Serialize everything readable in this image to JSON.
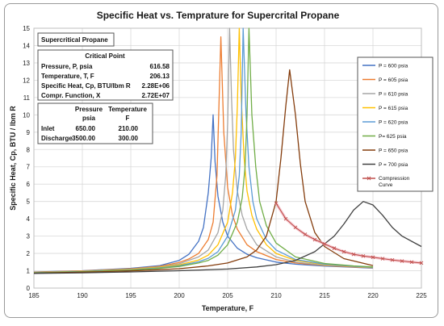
{
  "chart_data": {
    "type": "line",
    "title": "Specific Heat vs. Temprature for Supercrital Propane",
    "xlabel": "Temperature, F",
    "ylabel": "Specific Heat, Cp, BTU / lbm R",
    "xlim": [
      185,
      225
    ],
    "ylim": [
      0,
      15
    ],
    "x_ticks": [
      185,
      190,
      195,
      200,
      205,
      210,
      215,
      220,
      225
    ],
    "y_ticks": [
      0,
      1,
      2,
      3,
      4,
      5,
      6,
      7,
      8,
      9,
      10,
      11,
      12,
      13,
      14,
      15
    ],
    "grid": true,
    "legend_position": "right",
    "series": [
      {
        "name": "P = 600 psia",
        "color": "#4472c4",
        "marker": "none",
        "x": [
          185,
          190,
          195,
          198,
          200,
          201,
          202,
          202.5,
          203,
          203.3,
          203.5,
          203.7,
          204,
          204.5,
          205,
          206,
          207,
          208,
          210,
          212,
          215,
          218,
          220
        ],
        "y": [
          0.93,
          1.0,
          1.14,
          1.3,
          1.6,
          1.95,
          2.7,
          3.5,
          5.5,
          7.5,
          10.0,
          7.3,
          5.3,
          3.8,
          3.0,
          2.3,
          1.95,
          1.75,
          1.5,
          1.38,
          1.27,
          1.2,
          1.15
        ]
      },
      {
        "name": "P = 605 psia",
        "color": "#ed7d31",
        "marker": "none",
        "x": [
          185,
          190,
          195,
          198,
          200,
          201,
          202,
          203,
          203.5,
          203.9,
          204.1,
          204.3,
          204.6,
          205,
          205.5,
          206,
          207,
          208,
          210,
          212,
          215,
          218,
          220
        ],
        "y": [
          0.92,
          0.99,
          1.11,
          1.26,
          1.48,
          1.68,
          2.0,
          2.8,
          3.8,
          6.5,
          10.5,
          14.5,
          9.0,
          5.8,
          4.2,
          3.4,
          2.5,
          2.1,
          1.65,
          1.45,
          1.3,
          1.22,
          1.17
        ]
      },
      {
        "name": "P = 610 psia",
        "color": "#a5a5a5",
        "marker": "none",
        "x": [
          185,
          190,
          195,
          198,
          200,
          202,
          203,
          204,
          204.5,
          204.8,
          205,
          205.2,
          205.4,
          205.6,
          206,
          206.5,
          207,
          208,
          210,
          212,
          215,
          218,
          220
        ],
        "y": [
          0.91,
          0.98,
          1.09,
          1.23,
          1.4,
          1.8,
          2.2,
          3.2,
          4.5,
          6.5,
          9.5,
          15.0,
          11.0,
          8.0,
          5.6,
          4.2,
          3.4,
          2.5,
          1.8,
          1.5,
          1.32,
          1.24,
          1.18
        ]
      },
      {
        "name": "P = 615 psia",
        "color": "#ffc000",
        "marker": "none",
        "x": [
          185,
          190,
          195,
          198,
          200,
          202,
          203,
          204,
          205,
          205.5,
          205.8,
          206,
          206.2,
          206.4,
          206.7,
          207,
          207.5,
          208,
          209,
          210,
          212,
          215,
          218,
          220
        ],
        "y": [
          0.9,
          0.97,
          1.07,
          1.2,
          1.34,
          1.62,
          1.9,
          2.5,
          3.8,
          5.5,
          7.5,
          10.5,
          15.0,
          11.0,
          7.5,
          5.6,
          4.2,
          3.4,
          2.5,
          2.0,
          1.6,
          1.36,
          1.25,
          1.19
        ]
      },
      {
        "name": "P = 620 psia",
        "color": "#5b9bd5",
        "marker": "none",
        "x": [
          185,
          190,
          195,
          198,
          200,
          202,
          203,
          204,
          205,
          205.8,
          206.2,
          206.4,
          206.6,
          206.9,
          207.2,
          207.6,
          208,
          209,
          210,
          212,
          215,
          218,
          220
        ],
        "y": [
          0.89,
          0.96,
          1.05,
          1.17,
          1.29,
          1.52,
          1.72,
          2.1,
          3.0,
          4.5,
          6.5,
          9.0,
          15.0,
          10.0,
          7.0,
          5.0,
          4.0,
          2.8,
          2.2,
          1.65,
          1.38,
          1.26,
          1.2
        ]
      },
      {
        "name": "P= 625 psia",
        "color": "#70ad47",
        "marker": "none",
        "x": [
          185,
          190,
          195,
          198,
          200,
          202,
          203,
          204,
          205,
          206,
          206.5,
          206.8,
          207,
          207.2,
          207.5,
          207.9,
          208.3,
          209,
          210,
          212,
          215,
          218,
          220
        ],
        "y": [
          0.88,
          0.95,
          1.03,
          1.14,
          1.25,
          1.45,
          1.6,
          1.9,
          2.5,
          3.8,
          5.2,
          7.0,
          10.0,
          15.0,
          10.0,
          7.0,
          5.0,
          3.6,
          2.6,
          1.8,
          1.42,
          1.28,
          1.22
        ]
      },
      {
        "name": "P = 650 psia",
        "color": "#843c0c",
        "marker": "none",
        "x": [
          185,
          190,
          195,
          198,
          200,
          203,
          205,
          207,
          208,
          209,
          210,
          210.5,
          211,
          211.4,
          212,
          212.5,
          213,
          214,
          215,
          217,
          220
        ],
        "y": [
          0.86,
          0.92,
          0.99,
          1.06,
          1.12,
          1.28,
          1.45,
          1.8,
          2.2,
          3.0,
          5.0,
          7.5,
          10.5,
          12.6,
          10.0,
          7.2,
          5.0,
          3.2,
          2.4,
          1.7,
          1.3
        ]
      },
      {
        "name": "P = 700 psia",
        "color": "#404040",
        "marker": "none",
        "x": [
          185,
          190,
          195,
          200,
          205,
          208,
          210,
          212,
          214,
          216,
          217,
          218,
          219,
          220,
          221,
          222,
          223,
          225
        ],
        "y": [
          0.85,
          0.88,
          0.93,
          1.0,
          1.1,
          1.22,
          1.35,
          1.6,
          2.1,
          3.0,
          3.7,
          4.5,
          5.0,
          4.8,
          4.2,
          3.5,
          3.0,
          2.4
        ]
      },
      {
        "name": "Compression Curve",
        "color": "#c0504d",
        "marker": "x",
        "x": [
          210,
          211,
          212,
          213,
          214,
          215,
          216,
          217,
          218,
          219,
          220,
          221,
          222,
          223,
          224,
          225
        ],
        "y": [
          4.9,
          4.0,
          3.5,
          3.1,
          2.8,
          2.55,
          2.3,
          2.1,
          1.95,
          1.85,
          1.78,
          1.7,
          1.62,
          1.56,
          1.5,
          1.45
        ]
      }
    ]
  },
  "info_box": {
    "title": "Supercritical Propane",
    "crit_header": "Critical Point",
    "crit_rows": [
      {
        "label": "Pressure, P, psia",
        "value": "616.58"
      },
      {
        "label": "Temperature, T, F",
        "value": "206.13"
      },
      {
        "label": "Specific Heat, Cp, BTU/lbm R",
        "value": "2.28E+06"
      },
      {
        "label": "Compr. Function, X",
        "value": "2.72E+07"
      }
    ],
    "table_header_pressure": "Pressure",
    "table_header_pressure_unit": "psia",
    "table_header_temp": "Temperature",
    "table_header_temp_unit": "F",
    "table_rows": [
      {
        "label": "Inlet",
        "pressure": "650.00",
        "temp": "210.00"
      },
      {
        "label": "Discharge",
        "pressure": "3500.00",
        "temp": "300.00"
      }
    ]
  }
}
